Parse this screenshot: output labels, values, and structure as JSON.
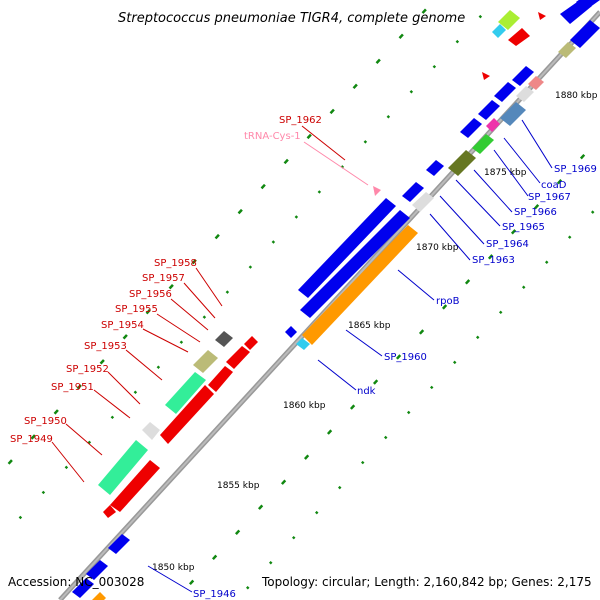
{
  "title": "Streptococcus pneumoniae TIGR4, complete genome",
  "footer": {
    "accession": "Accession: NC_003028",
    "topology": "Topology: circular; Length: 2,160,842 bp; Genes: 2,175"
  },
  "kbp_ticks": [
    "1850 kbp",
    "1855 kbp",
    "1860 kbp",
    "1865 kbp",
    "1870 kbp",
    "1875 kbp",
    "1880 kbp"
  ],
  "left_labels": [
    "SP_1962",
    "SP_1958",
    "SP_1957",
    "SP_1956",
    "SP_1955",
    "SP_1954",
    "SP_1953",
    "SP_1952",
    "SP_1951",
    "SP_1950",
    "SP_1949"
  ],
  "trna_label": "tRNA-Cys-1",
  "right_labels": [
    "SP_1969",
    "coaD",
    "SP_1967",
    "SP_1966",
    "SP_1965",
    "SP_1964",
    "SP_1963",
    "rpoB",
    "SP_1960",
    "ndk",
    "SP_1946"
  ],
  "colors": {
    "axis": "#999999",
    "gene_forward": "#0000ee",
    "gene_reverse": "#ee0000",
    "rpoB": "#ff9900",
    "light_green": "#33ee99",
    "olive": "#bbbb77",
    "gc_dash": "#118811"
  }
}
